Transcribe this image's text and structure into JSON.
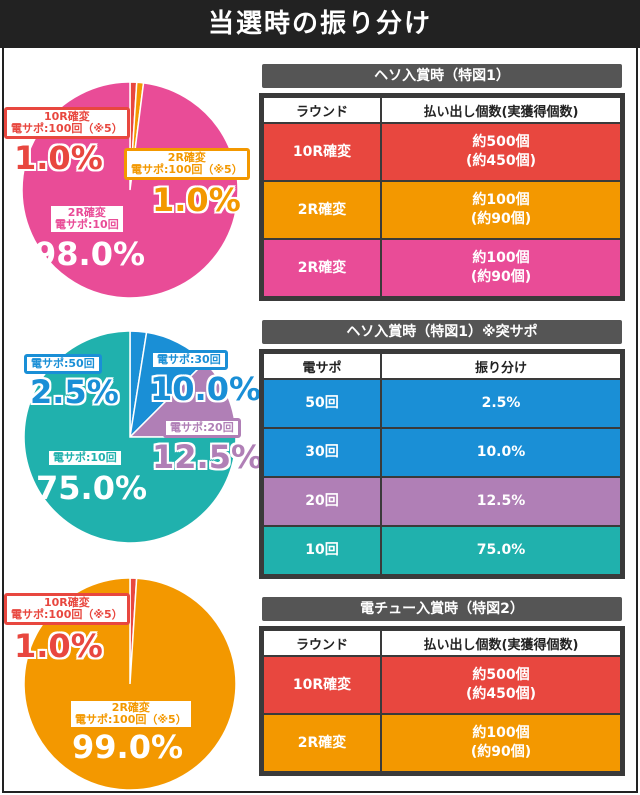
{
  "header": {
    "title": "当選時の振り分け"
  },
  "colors": {
    "red": "#e8473f",
    "orange": "#f39800",
    "pink": "#e94c97",
    "blue": "#1a8fd6",
    "purple": "#b07fb6",
    "teal": "#20b1ad"
  },
  "chart_data": [
    {
      "type": "pie",
      "slices": [
        {
          "label_line1": "10R確変",
          "label_line2": "電サポ:100回（※5）",
          "value": 1.0,
          "display": "1.0%",
          "color": "#e8473f"
        },
        {
          "label_line1": "2R確変",
          "label_line2": "電サポ:100回（※5）",
          "value": 1.0,
          "display": "1.0%",
          "color": "#f39800"
        },
        {
          "label_line1": "2R確変",
          "label_line2": "電サポ:10回",
          "value": 98.0,
          "display": "98.0%",
          "color": "#e94c97"
        }
      ]
    },
    {
      "type": "pie",
      "slices": [
        {
          "label_line1": "電サポ:50回",
          "value": 2.5,
          "display": "2.5%",
          "color": "#1a8fd6"
        },
        {
          "label_line1": "電サポ:30回",
          "value": 10.0,
          "display": "10.0%",
          "color": "#1a8fd6"
        },
        {
          "label_line1": "電サポ:20回",
          "value": 12.5,
          "display": "12.5%",
          "color": "#b07fb6"
        },
        {
          "label_line1": "電サポ:10回",
          "value": 75.0,
          "display": "75.0%",
          "color": "#20b1ad"
        }
      ]
    },
    {
      "type": "pie",
      "slices": [
        {
          "label_line1": "10R確変",
          "label_line2": "電サポ:100回（※5）",
          "value": 1.0,
          "display": "1.0%",
          "color": "#e8473f"
        },
        {
          "label_line1": "2R確変",
          "label_line2": "電サポ:100回（※5）",
          "value": 99.0,
          "display": "99.0%",
          "color": "#f39800"
        }
      ]
    },
    {
      "type": "table",
      "title": "ヘソ入賞時（特図1）",
      "columns": [
        "ラウンド",
        "払い出し個数(実獲得個数)"
      ],
      "rows": [
        {
          "c1": "10R確変",
          "c2a": "約500個",
          "c2b": "(約450個)",
          "color": "#e8473f"
        },
        {
          "c1": "2R確変",
          "c2a": "約100個",
          "c2b": "(約90個)",
          "color": "#f39800"
        },
        {
          "c1": "2R確変",
          "c2a": "約100個",
          "c2b": "(約90個)",
          "color": "#e94c97"
        }
      ]
    },
    {
      "type": "table",
      "title": "ヘソ入賞時（特図1）※突サポ",
      "columns": [
        "電サポ",
        "振り分け"
      ],
      "rows": [
        {
          "c1": "50回",
          "c2": "2.5%",
          "color": "#1a8fd6"
        },
        {
          "c1": "30回",
          "c2": "10.0%",
          "color": "#1a8fd6"
        },
        {
          "c1": "20回",
          "c2": "12.5%",
          "color": "#b07fb6"
        },
        {
          "c1": "10回",
          "c2": "75.0%",
          "color": "#20b1ad"
        }
      ]
    },
    {
      "type": "table",
      "title": "電チュー入賞時（特図2）",
      "columns": [
        "ラウンド",
        "払い出し個数(実獲得個数)"
      ],
      "rows": [
        {
          "c1": "10R確変",
          "c2a": "約500個",
          "c2b": "(約450個)",
          "color": "#e8473f"
        },
        {
          "c1": "2R確変",
          "c2a": "約100個",
          "c2b": "(約90個)",
          "color": "#f39800"
        }
      ]
    }
  ]
}
